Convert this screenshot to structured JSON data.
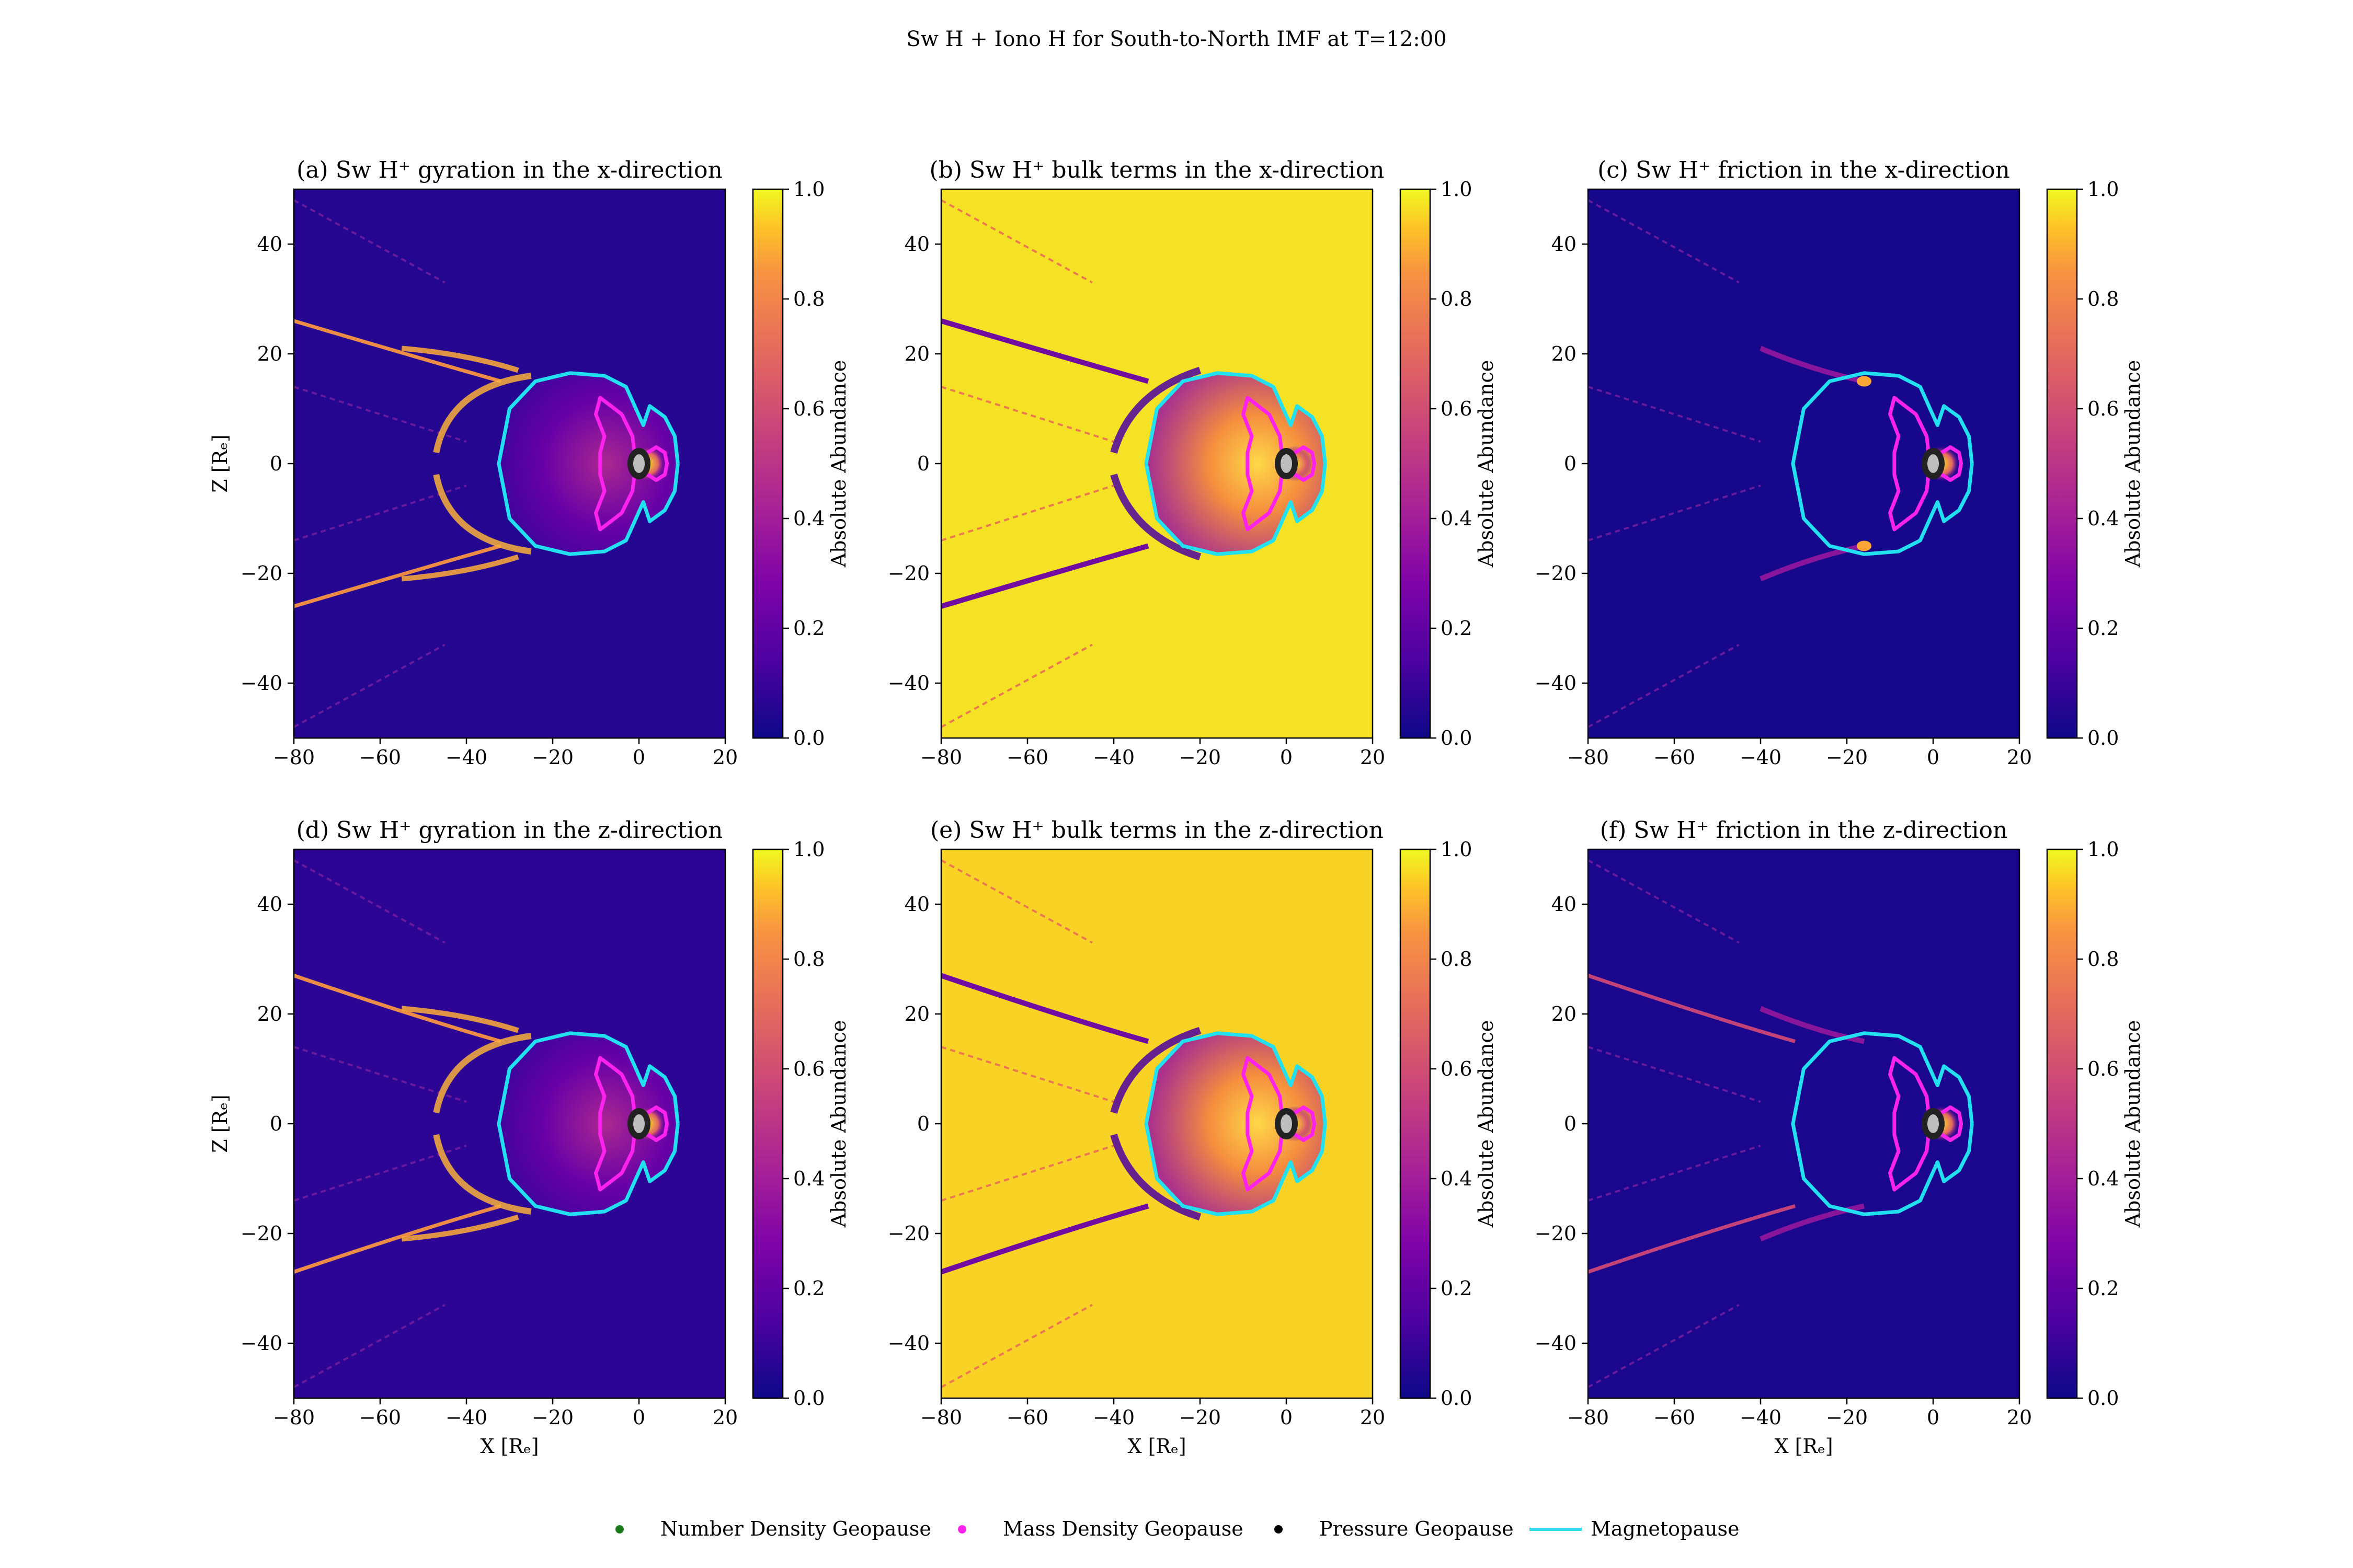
{
  "figure": {
    "title": "Sw H + Iono H for South-to-North IMF at T=12:00"
  },
  "colors": {
    "magnetopause": "#22e0f0",
    "mass_density_geopause": "#ff22ee",
    "number_density_geopause": "#1a7a1a",
    "pressure_geopause": "#000000",
    "cmap_low": "#0d0887",
    "cmap_high": "#f0f921"
  },
  "chart_data": [
    {
      "type": "heatmap",
      "title": "(a) Sw H⁺ gyration in the x-direction",
      "xlabel": "",
      "ylabel": "Z [Rₑ]",
      "xlim": [
        -80,
        20
      ],
      "ylim": [
        -50,
        50
      ],
      "xticks": [
        -80,
        -60,
        -40,
        -20,
        0,
        20
      ],
      "yticks": [
        -40,
        -20,
        0,
        20,
        40
      ],
      "colorbar": {
        "label": "Absolute Abundance",
        "ticks": [
          0.0,
          0.2,
          0.4,
          0.6,
          0.8,
          1.0
        ],
        "range": [
          0,
          1
        ]
      },
      "background_level": 0.05
    },
    {
      "type": "heatmap",
      "title": "(b) Sw H⁺ bulk terms in the x-direction",
      "xlabel": "",
      "ylabel": "",
      "xlim": [
        -80,
        20
      ],
      "ylim": [
        -50,
        50
      ],
      "xticks": [
        -80,
        -60,
        -40,
        -20,
        0,
        20
      ],
      "yticks": [
        -40,
        -20,
        0,
        20,
        40
      ],
      "colorbar": {
        "label": "Absolute Abundance",
        "ticks": [
          0.0,
          0.2,
          0.4,
          0.6,
          0.8,
          1.0
        ],
        "range": [
          0,
          1
        ]
      },
      "background_level": 0.97
    },
    {
      "type": "heatmap",
      "title": "(c) Sw H⁺ friction in the x-direction",
      "xlabel": "",
      "ylabel": "",
      "xlim": [
        -80,
        20
      ],
      "ylim": [
        -50,
        50
      ],
      "xticks": [
        -80,
        -60,
        -40,
        -20,
        0,
        20
      ],
      "yticks": [
        -40,
        -20,
        0,
        20,
        40
      ],
      "colorbar": {
        "label": "Absolute Abundance",
        "ticks": [
          0.0,
          0.2,
          0.4,
          0.6,
          0.8,
          1.0
        ],
        "range": [
          0,
          1
        ]
      },
      "background_level": 0.02
    },
    {
      "type": "heatmap",
      "title": "(d) Sw H⁺ gyration in the z-direction",
      "xlabel": "X [Rₑ]",
      "ylabel": "Z [Rₑ]",
      "xlim": [
        -80,
        20
      ],
      "ylim": [
        -50,
        50
      ],
      "xticks": [
        -80,
        -60,
        -40,
        -20,
        0,
        20
      ],
      "yticks": [
        -40,
        -20,
        0,
        20,
        40
      ],
      "colorbar": {
        "label": "Absolute Abundance",
        "ticks": [
          0.0,
          0.2,
          0.4,
          0.6,
          0.8,
          1.0
        ],
        "range": [
          0,
          1
        ]
      },
      "background_level": 0.07
    },
    {
      "type": "heatmap",
      "title": "(e) Sw H⁺ bulk terms in the z-direction",
      "xlabel": "X [Rₑ]",
      "ylabel": "",
      "xlim": [
        -80,
        20
      ],
      "ylim": [
        -50,
        50
      ],
      "xticks": [
        -80,
        -60,
        -40,
        -20,
        0,
        20
      ],
      "yticks": [
        -40,
        -20,
        0,
        20,
        40
      ],
      "colorbar": {
        "label": "Absolute Abundance",
        "ticks": [
          0.0,
          0.2,
          0.4,
          0.6,
          0.8,
          1.0
        ],
        "range": [
          0,
          1
        ]
      },
      "background_level": 0.95
    },
    {
      "type": "heatmap",
      "title": "(f) Sw H⁺ friction in the z-direction",
      "xlabel": "X [Rₑ]",
      "ylabel": "",
      "xlim": [
        -80,
        20
      ],
      "ylim": [
        -50,
        50
      ],
      "xticks": [
        -80,
        -60,
        -40,
        -20,
        0,
        20
      ],
      "yticks": [
        -40,
        -20,
        0,
        20,
        40
      ],
      "colorbar": {
        "label": "Absolute Abundance",
        "ticks": [
          0.0,
          0.2,
          0.4,
          0.6,
          0.8,
          1.0
        ],
        "range": [
          0,
          1
        ]
      },
      "background_level": 0.03
    }
  ],
  "boundaries": {
    "magnetopause": [
      [
        9,
        0
      ],
      [
        8.3,
        5
      ],
      [
        6,
        8.5
      ],
      [
        2.5,
        10.5
      ],
      [
        1,
        7
      ],
      [
        -3,
        14
      ],
      [
        -8,
        16
      ],
      [
        -16,
        16.5
      ],
      [
        -24,
        15
      ],
      [
        -30,
        10
      ],
      [
        -32.5,
        0
      ],
      [
        -30,
        -10
      ],
      [
        -24,
        -15
      ],
      [
        -16,
        -16.5
      ],
      [
        -8,
        -16
      ],
      [
        -3,
        -14
      ],
      [
        1,
        -7
      ],
      [
        2.5,
        -10.5
      ],
      [
        6,
        -8.5
      ],
      [
        8.3,
        -5
      ],
      [
        9,
        0
      ]
    ],
    "mass_density_geopause": [
      [
        -1,
        1.5
      ],
      [
        -1.5,
        5
      ],
      [
        -4,
        9
      ],
      [
        -9,
        12
      ],
      [
        -10,
        9
      ],
      [
        -8,
        5
      ],
      [
        -9,
        2
      ],
      [
        -9,
        -2
      ],
      [
        -8,
        -5
      ],
      [
        -10,
        -9
      ],
      [
        -9,
        -12
      ],
      [
        -4,
        -9
      ],
      [
        -1.5,
        -5
      ],
      [
        -1,
        -1.5
      ],
      [
        1,
        -1.5
      ],
      [
        4,
        -3
      ],
      [
        6,
        -2
      ],
      [
        6.5,
        0
      ],
      [
        6,
        2
      ],
      [
        4,
        3
      ],
      [
        1,
        1.5
      ],
      [
        -1,
        1.5
      ]
    ]
  },
  "legend": {
    "placement": "bottom-center",
    "items": [
      {
        "label": "Number Density Geopause",
        "marker": "dot",
        "color": "#1a7a1a"
      },
      {
        "label": "Mass Density Geopause",
        "marker": "dot",
        "color": "#ff22ee"
      },
      {
        "label": "Pressure Geopause",
        "marker": "dot",
        "color": "#000000"
      },
      {
        "label": "Magnetopause",
        "marker": "line",
        "color": "#22e0f0"
      }
    ]
  }
}
